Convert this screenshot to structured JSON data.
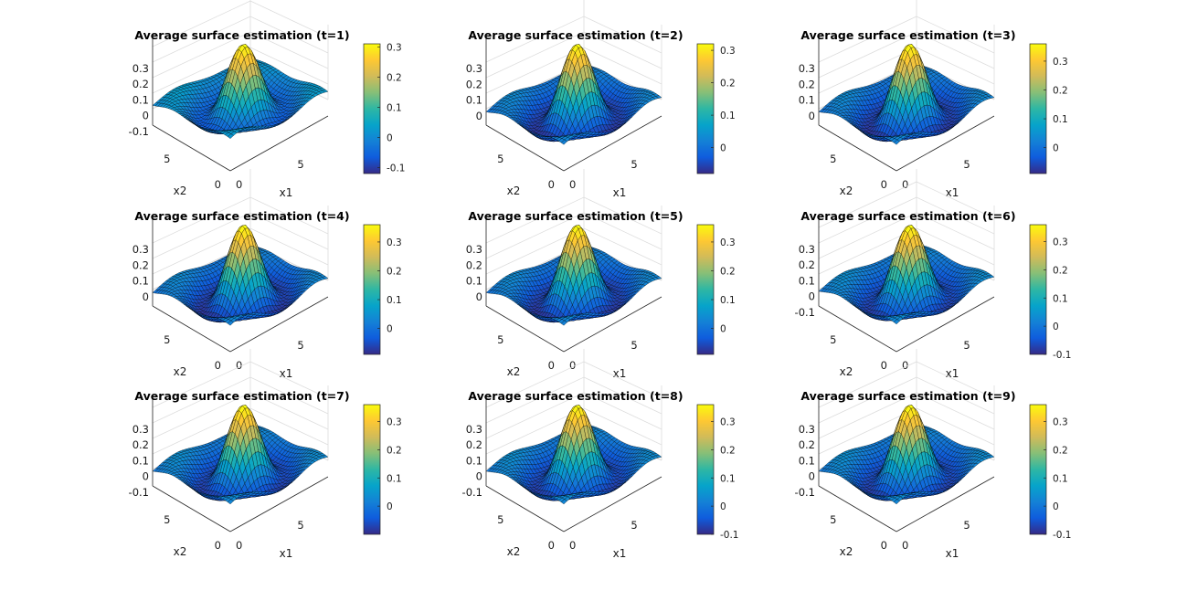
{
  "colors": {
    "colormap": [
      "#352a87",
      "#0f5cdd",
      "#1481d6",
      "#06a4ca",
      "#2eb7a4",
      "#87bf77",
      "#d1bb59",
      "#fec832",
      "#f9fb0e"
    ],
    "grid": "#dcdcdc",
    "mesh_edge": "#000000"
  },
  "chart_data": [
    {
      "type": "surface",
      "title": "Average surface estimation (t=1)",
      "xlabel": "x1",
      "ylabel": "x2",
      "x_ticks": [
        "0",
        "5"
      ],
      "y_ticks": [
        "0",
        "5"
      ],
      "z_ticks": [
        "-0.1",
        "0",
        "0.1",
        "0.2",
        "0.3"
      ],
      "zlim": [
        -0.12,
        0.31
      ],
      "colorbar_ticks": [
        "-0.1",
        "0",
        "0.1",
        "0.2",
        "0.3"
      ],
      "colorbar_range": [
        -0.12,
        0.31
      ],
      "peak": 0.31
    },
    {
      "type": "surface",
      "title": "Average surface estimation (t=2)",
      "xlabel": "x1",
      "ylabel": "x2",
      "x_ticks": [
        "0",
        "5"
      ],
      "y_ticks": [
        "0",
        "5"
      ],
      "z_ticks": [
        "0",
        "0.1",
        "0.2",
        "0.3"
      ],
      "zlim": [
        -0.08,
        0.32
      ],
      "colorbar_ticks": [
        "0",
        "0.1",
        "0.2",
        "0.3"
      ],
      "colorbar_range": [
        -0.08,
        0.32
      ],
      "peak": 0.32
    },
    {
      "type": "surface",
      "title": "Average surface estimation (t=3)",
      "xlabel": "x1",
      "ylabel": "x2",
      "x_ticks": [
        "0",
        "5"
      ],
      "y_ticks": [
        "0",
        "5"
      ],
      "z_ticks": [
        "0",
        "0.1",
        "0.2",
        "0.3"
      ],
      "zlim": [
        -0.09,
        0.36
      ],
      "colorbar_ticks": [
        "0",
        "0.1",
        "0.2",
        "0.3"
      ],
      "colorbar_range": [
        -0.09,
        0.36
      ],
      "peak": 0.36
    },
    {
      "type": "surface",
      "title": "Average surface estimation (t=4)",
      "xlabel": "x1",
      "ylabel": "x2",
      "x_ticks": [
        "0",
        "5"
      ],
      "y_ticks": [
        "0",
        "5"
      ],
      "z_ticks": [
        "0",
        "0.1",
        "0.2",
        "0.3"
      ],
      "zlim": [
        -0.09,
        0.36
      ],
      "colorbar_ticks": [
        "0",
        "0.1",
        "0.2",
        "0.3"
      ],
      "colorbar_range": [
        -0.09,
        0.36
      ],
      "peak": 0.36
    },
    {
      "type": "surface",
      "title": "Average surface estimation (t=5)",
      "xlabel": "x1",
      "ylabel": "x2",
      "x_ticks": [
        "0",
        "5"
      ],
      "y_ticks": [
        "0",
        "5"
      ],
      "z_ticks": [
        "0",
        "0.1",
        "0.2",
        "0.3"
      ],
      "zlim": [
        -0.09,
        0.36
      ],
      "colorbar_ticks": [
        "0",
        "0.1",
        "0.2",
        "0.3"
      ],
      "colorbar_range": [
        -0.09,
        0.36
      ],
      "peak": 0.36
    },
    {
      "type": "surface",
      "title": "Average surface estimation (t=6)",
      "xlabel": "x1",
      "ylabel": "x2",
      "x_ticks": [
        "0",
        "5"
      ],
      "y_ticks": [
        "0",
        "5"
      ],
      "z_ticks": [
        "-0.1",
        "0",
        "0.1",
        "0.2",
        "0.3"
      ],
      "zlim": [
        -0.1,
        0.36
      ],
      "colorbar_ticks": [
        "-0.1",
        "0",
        "0.1",
        "0.2",
        "0.3"
      ],
      "colorbar_range": [
        -0.1,
        0.36
      ],
      "peak": 0.36
    },
    {
      "type": "surface",
      "title": "Average surface estimation (t=7)",
      "xlabel": "x1",
      "ylabel": "x2",
      "x_ticks": [
        "0",
        "5"
      ],
      "y_ticks": [
        "0",
        "5"
      ],
      "z_ticks": [
        "-0.1",
        "0",
        "0.1",
        "0.2",
        "0.3"
      ],
      "zlim": [
        -0.1,
        0.36
      ],
      "colorbar_ticks": [
        "0",
        "0.1",
        "0.2",
        "0.3"
      ],
      "colorbar_range": [
        -0.1,
        0.36
      ],
      "peak": 0.36
    },
    {
      "type": "surface",
      "title": "Average surface estimation (t=8)",
      "xlabel": "x1",
      "ylabel": "x2",
      "x_ticks": [
        "0",
        "5"
      ],
      "y_ticks": [
        "0",
        "5"
      ],
      "z_ticks": [
        "-0.1",
        "0",
        "0.1",
        "0.2",
        "0.3"
      ],
      "zlim": [
        -0.1,
        0.36
      ],
      "colorbar_ticks": [
        "-0.1",
        "0",
        "0.1",
        "0.2",
        "0.3"
      ],
      "colorbar_range": [
        -0.1,
        0.36
      ],
      "peak": 0.36
    },
    {
      "type": "surface",
      "title": "Average surface estimation (t=9)",
      "xlabel": "x1",
      "ylabel": "x2",
      "x_ticks": [
        "0",
        "5"
      ],
      "y_ticks": [
        "0",
        "5"
      ],
      "z_ticks": [
        "-0.1",
        "0",
        "0.1",
        "0.2",
        "0.3"
      ],
      "zlim": [
        -0.1,
        0.36
      ],
      "colorbar_ticks": [
        "-0.1",
        "0",
        "0.1",
        "0.2",
        "0.3"
      ],
      "colorbar_range": [
        -0.1,
        0.36
      ],
      "peak": 0.36
    }
  ]
}
